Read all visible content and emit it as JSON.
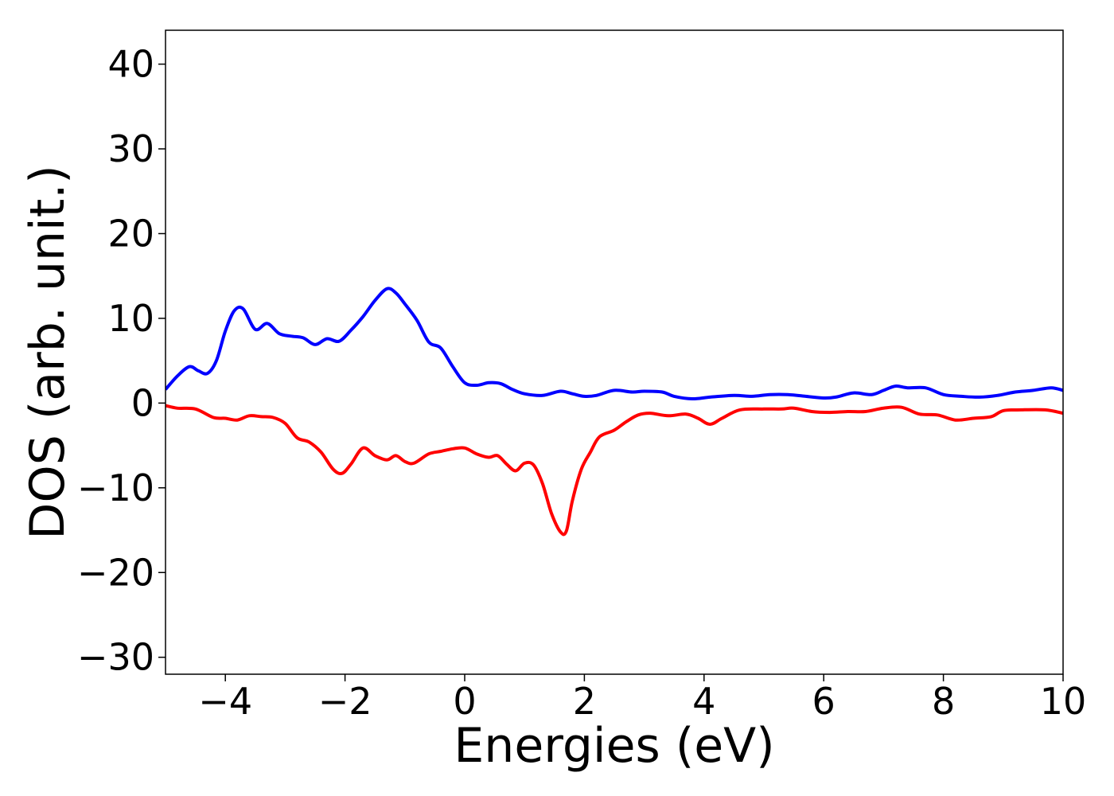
{
  "chart_data": {
    "type": "line",
    "title": "",
    "xlabel": "Energies (eV)",
    "ylabel": "DOS (arb. unit.)",
    "xlim": [
      -5,
      10
    ],
    "ylim": [
      -32,
      44
    ],
    "grid": false,
    "legend": "none",
    "x_ticks": [
      -4,
      -2,
      0,
      2,
      4,
      6,
      8,
      10
    ],
    "x_tick_labels": [
      "−4",
      "−2",
      "0",
      "2",
      "4",
      "6",
      "8",
      "10"
    ],
    "y_ticks": [
      40,
      30,
      20,
      10,
      0,
      -10,
      -20,
      -30
    ],
    "y_tick_labels": [
      "40",
      "30",
      "20",
      "10",
      "0",
      "−10",
      "−20",
      "−30"
    ],
    "series": [
      {
        "color": "#0000ff",
        "points": [
          [
            -5.0,
            1.6
          ],
          [
            -4.8,
            3.2
          ],
          [
            -4.6,
            4.3
          ],
          [
            -4.45,
            3.8
          ],
          [
            -4.3,
            3.5
          ],
          [
            -4.15,
            5.0
          ],
          [
            -4.0,
            8.5
          ],
          [
            -3.85,
            10.9
          ],
          [
            -3.7,
            11.1
          ],
          [
            -3.5,
            8.7
          ],
          [
            -3.3,
            9.4
          ],
          [
            -3.1,
            8.2
          ],
          [
            -2.9,
            7.9
          ],
          [
            -2.7,
            7.7
          ],
          [
            -2.5,
            6.9
          ],
          [
            -2.3,
            7.6
          ],
          [
            -2.1,
            7.3
          ],
          [
            -1.9,
            8.6
          ],
          [
            -1.7,
            10.2
          ],
          [
            -1.5,
            12.1
          ],
          [
            -1.3,
            13.5
          ],
          [
            -1.15,
            13.0
          ],
          [
            -1.0,
            11.7
          ],
          [
            -0.8,
            9.8
          ],
          [
            -0.6,
            7.2
          ],
          [
            -0.4,
            6.5
          ],
          [
            -0.2,
            4.3
          ],
          [
            0.0,
            2.4
          ],
          [
            0.2,
            2.1
          ],
          [
            0.4,
            2.4
          ],
          [
            0.6,
            2.3
          ],
          [
            0.8,
            1.6
          ],
          [
            1.0,
            1.1
          ],
          [
            1.3,
            0.9
          ],
          [
            1.6,
            1.4
          ],
          [
            1.8,
            1.1
          ],
          [
            2.0,
            0.8
          ],
          [
            2.2,
            0.9
          ],
          [
            2.5,
            1.5
          ],
          [
            2.8,
            1.3
          ],
          [
            3.0,
            1.4
          ],
          [
            3.3,
            1.3
          ],
          [
            3.5,
            0.8
          ],
          [
            3.8,
            0.5
          ],
          [
            4.1,
            0.7
          ],
          [
            4.5,
            0.9
          ],
          [
            4.8,
            0.8
          ],
          [
            5.1,
            1.0
          ],
          [
            5.4,
            1.0
          ],
          [
            5.7,
            0.8
          ],
          [
            6.0,
            0.6
          ],
          [
            6.2,
            0.7
          ],
          [
            6.5,
            1.2
          ],
          [
            6.8,
            1.0
          ],
          [
            7.0,
            1.5
          ],
          [
            7.2,
            2.0
          ],
          [
            7.4,
            1.8
          ],
          [
            7.7,
            1.8
          ],
          [
            8.0,
            1.0
          ],
          [
            8.3,
            0.8
          ],
          [
            8.6,
            0.7
          ],
          [
            8.9,
            0.9
          ],
          [
            9.2,
            1.3
          ],
          [
            9.5,
            1.5
          ],
          [
            9.8,
            1.8
          ],
          [
            10.0,
            1.5
          ]
        ]
      },
      {
        "color": "#ff0000",
        "points": [
          [
            -5.0,
            -0.3
          ],
          [
            -4.8,
            -0.6
          ],
          [
            -4.5,
            -0.7
          ],
          [
            -4.2,
            -1.7
          ],
          [
            -4.0,
            -1.8
          ],
          [
            -3.8,
            -2.0
          ],
          [
            -3.6,
            -1.5
          ],
          [
            -3.4,
            -1.6
          ],
          [
            -3.2,
            -1.7
          ],
          [
            -3.0,
            -2.4
          ],
          [
            -2.8,
            -4.1
          ],
          [
            -2.6,
            -4.6
          ],
          [
            -2.4,
            -5.8
          ],
          [
            -2.2,
            -7.8
          ],
          [
            -2.05,
            -8.3
          ],
          [
            -1.9,
            -7.2
          ],
          [
            -1.7,
            -5.3
          ],
          [
            -1.5,
            -6.2
          ],
          [
            -1.3,
            -6.7
          ],
          [
            -1.15,
            -6.2
          ],
          [
            -1.0,
            -6.9
          ],
          [
            -0.85,
            -7.1
          ],
          [
            -0.6,
            -6.0
          ],
          [
            -0.4,
            -5.7
          ],
          [
            -0.2,
            -5.4
          ],
          [
            0.0,
            -5.3
          ],
          [
            0.2,
            -6.0
          ],
          [
            0.4,
            -6.4
          ],
          [
            0.55,
            -6.2
          ],
          [
            0.7,
            -7.2
          ],
          [
            0.85,
            -8.0
          ],
          [
            1.0,
            -7.1
          ],
          [
            1.15,
            -7.3
          ],
          [
            1.3,
            -9.5
          ],
          [
            1.45,
            -13.0
          ],
          [
            1.6,
            -15.2
          ],
          [
            1.7,
            -15.1
          ],
          [
            1.8,
            -11.5
          ],
          [
            1.95,
            -7.8
          ],
          [
            2.1,
            -5.8
          ],
          [
            2.25,
            -4.0
          ],
          [
            2.5,
            -3.2
          ],
          [
            2.7,
            -2.2
          ],
          [
            2.9,
            -1.4
          ],
          [
            3.1,
            -1.2
          ],
          [
            3.4,
            -1.5
          ],
          [
            3.7,
            -1.3
          ],
          [
            3.9,
            -1.8
          ],
          [
            4.1,
            -2.5
          ],
          [
            4.3,
            -1.8
          ],
          [
            4.6,
            -0.8
          ],
          [
            5.0,
            -0.7
          ],
          [
            5.3,
            -0.7
          ],
          [
            5.5,
            -0.6
          ],
          [
            5.8,
            -1.0
          ],
          [
            6.1,
            -1.1
          ],
          [
            6.4,
            -1.0
          ],
          [
            6.7,
            -1.0
          ],
          [
            7.0,
            -0.6
          ],
          [
            7.3,
            -0.5
          ],
          [
            7.6,
            -1.3
          ],
          [
            7.9,
            -1.4
          ],
          [
            8.2,
            -2.0
          ],
          [
            8.5,
            -1.8
          ],
          [
            8.8,
            -1.6
          ],
          [
            9.0,
            -0.9
          ],
          [
            9.3,
            -0.8
          ],
          [
            9.7,
            -0.8
          ],
          [
            10.0,
            -1.2
          ]
        ]
      }
    ]
  }
}
